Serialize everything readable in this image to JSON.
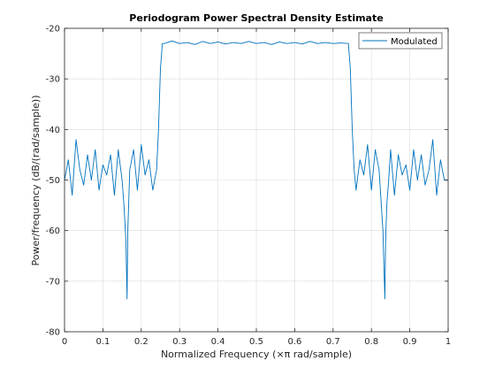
{
  "chart_data": {
    "type": "line",
    "title": "Periodogram Power Spectral Density Estimate",
    "xlabel": "Normalized Frequency  (×π rad/sample)",
    "ylabel": "Power/frequency (dB/(rad/sample))",
    "xlim": [
      0,
      1
    ],
    "ylim": [
      -80,
      -20
    ],
    "xticks": [
      0,
      0.1,
      0.2,
      0.3,
      0.4,
      0.5,
      0.6,
      0.7,
      0.8,
      0.9,
      1
    ],
    "xtick_labels": [
      "0",
      "0.1",
      "0.2",
      "0.3",
      "0.4",
      "0.5",
      "0.6",
      "0.7",
      "0.8",
      "0.9",
      "1"
    ],
    "yticks": [
      -80,
      -70,
      -60,
      -50,
      -40,
      -30,
      -20
    ],
    "ytick_labels": [
      "-80",
      "-70",
      "-60",
      "-50",
      "-40",
      "-30",
      "-20"
    ],
    "grid": true,
    "legend_position": "top-right",
    "series": [
      {
        "name": "Modulated",
        "color": "#0072bd",
        "x": [
          0,
          0.01,
          0.02,
          0.03,
          0.04,
          0.05,
          0.06,
          0.07,
          0.08,
          0.09,
          0.1,
          0.11,
          0.12,
          0.13,
          0.14,
          0.15,
          0.155,
          0.16,
          0.163,
          0.165,
          0.17,
          0.18,
          0.19,
          0.2,
          0.21,
          0.22,
          0.23,
          0.24,
          0.245,
          0.25,
          0.255,
          0.26,
          0.28,
          0.3,
          0.32,
          0.34,
          0.36,
          0.38,
          0.4,
          0.42,
          0.44,
          0.46,
          0.48,
          0.5,
          0.52,
          0.54,
          0.56,
          0.58,
          0.6,
          0.62,
          0.64,
          0.66,
          0.68,
          0.7,
          0.72,
          0.74,
          0.745,
          0.75,
          0.755,
          0.76,
          0.77,
          0.78,
          0.79,
          0.8,
          0.81,
          0.82,
          0.83,
          0.835,
          0.837,
          0.84,
          0.845,
          0.85,
          0.86,
          0.87,
          0.88,
          0.89,
          0.9,
          0.91,
          0.92,
          0.93,
          0.94,
          0.95,
          0.96,
          0.97,
          0.98,
          0.99,
          1
        ],
        "y": [
          -50,
          -46,
          -53,
          -42,
          -48,
          -51,
          -45,
          -50,
          -44,
          -52,
          -47,
          -49,
          -45,
          -53,
          -44,
          -50,
          -55,
          -62,
          -73.5,
          -60,
          -48,
          -44,
          -52,
          -43,
          -49,
          -46,
          -52,
          -48,
          -40,
          -28,
          -23,
          -23,
          -22.5,
          -23,
          -22.8,
          -23.2,
          -22.6,
          -23,
          -22.7,
          -23.1,
          -22.8,
          -23,
          -22.6,
          -23,
          -22.8,
          -23.2,
          -22.7,
          -23,
          -22.8,
          -23.1,
          -22.6,
          -23,
          -22.8,
          -23,
          -22.9,
          -23,
          -28,
          -40,
          -48,
          -52,
          -46,
          -49,
          -43,
          -52,
          -44,
          -48,
          -60,
          -73.5,
          -62,
          -55,
          -50,
          -44,
          -53,
          -45,
          -49,
          -47,
          -52,
          -44,
          -50,
          -45,
          -51,
          -48,
          -42,
          -53,
          -46,
          -50,
          -50
        ]
      }
    ]
  }
}
